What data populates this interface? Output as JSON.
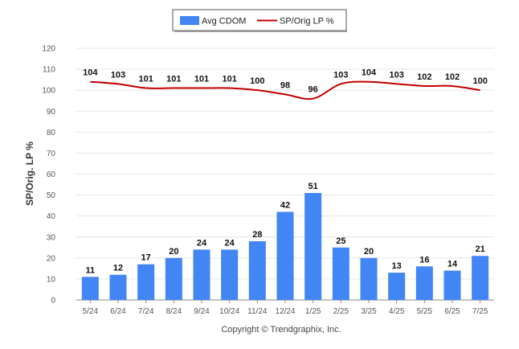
{
  "chart_data": {
    "type": "bar",
    "categories": [
      "5/24",
      "6/24",
      "7/24",
      "8/24",
      "9/24",
      "10/24",
      "11/24",
      "12/24",
      "1/25",
      "2/25",
      "3/25",
      "4/25",
      "5/25",
      "6/25",
      "7/25"
    ],
    "series": [
      {
        "name": "Avg CDOM",
        "type": "bar",
        "color": "#4285F4",
        "values": [
          11,
          12,
          17,
          20,
          24,
          24,
          28,
          42,
          51,
          25,
          20,
          13,
          16,
          14,
          21
        ]
      },
      {
        "name": "SP/Orig LP %",
        "type": "line",
        "color": "#C00000",
        "values": [
          104,
          103,
          101,
          101,
          101,
          101,
          100,
          98,
          96,
          103,
          104,
          103,
          102,
          102,
          100
        ]
      }
    ],
    "ylabel": "SP/Orig. LP %",
    "ylim": [
      0,
      120
    ],
    "yticks": [
      0,
      10,
      20,
      30,
      40,
      50,
      60,
      70,
      80,
      90,
      100,
      110,
      120
    ],
    "grid": true,
    "legend_position": "top-center",
    "data_labels": true
  },
  "footer": {
    "copyright": "Copyright © Trendgraphix, Inc."
  }
}
